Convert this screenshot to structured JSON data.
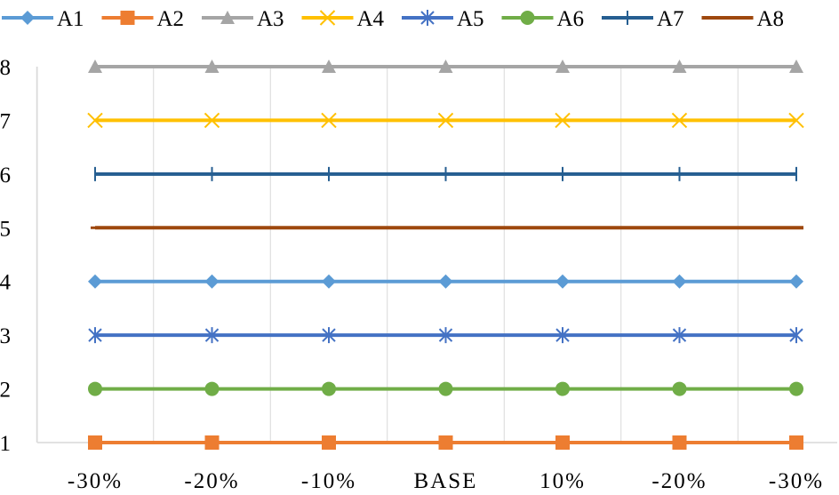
{
  "chart_data": {
    "type": "line",
    "title": "",
    "xlabel": "",
    "ylabel": "",
    "categories": [
      "-30%",
      "-20%",
      "-10%",
      "BASE",
      "10%",
      "-20%",
      "-30%"
    ],
    "ylim": [
      1,
      8
    ],
    "yticks": [
      1,
      2,
      3,
      4,
      5,
      6,
      7,
      8
    ],
    "grid": "vertical",
    "legend_position": "top",
    "series": [
      {
        "name": "A1",
        "marker": "diamond",
        "color": "#5B9BD5",
        "values": [
          4,
          4,
          4,
          4,
          4,
          4,
          4
        ]
      },
      {
        "name": "A2",
        "marker": "square",
        "color": "#ED7D31",
        "values": [
          1,
          1,
          1,
          1,
          1,
          1,
          1
        ]
      },
      {
        "name": "A3",
        "marker": "triangle",
        "color": "#A5A5A5",
        "values": [
          8,
          8,
          8,
          8,
          8,
          8,
          8
        ]
      },
      {
        "name": "A4",
        "marker": "x",
        "color": "#FFC000",
        "values": [
          7,
          7,
          7,
          7,
          7,
          7,
          7
        ]
      },
      {
        "name": "A5",
        "marker": "star",
        "color": "#4472C4",
        "values": [
          3,
          3,
          3,
          3,
          3,
          3,
          3
        ]
      },
      {
        "name": "A6",
        "marker": "circle",
        "color": "#70AD47",
        "values": [
          2,
          2,
          2,
          2,
          2,
          2,
          2
        ]
      },
      {
        "name": "A7",
        "marker": "plus",
        "color": "#255E91",
        "values": [
          6,
          6,
          6,
          6,
          6,
          6,
          6
        ]
      },
      {
        "name": "A8",
        "marker": "dash",
        "color": "#9E480E",
        "values": [
          5,
          5,
          5,
          5,
          5,
          5,
          5
        ]
      }
    ]
  }
}
